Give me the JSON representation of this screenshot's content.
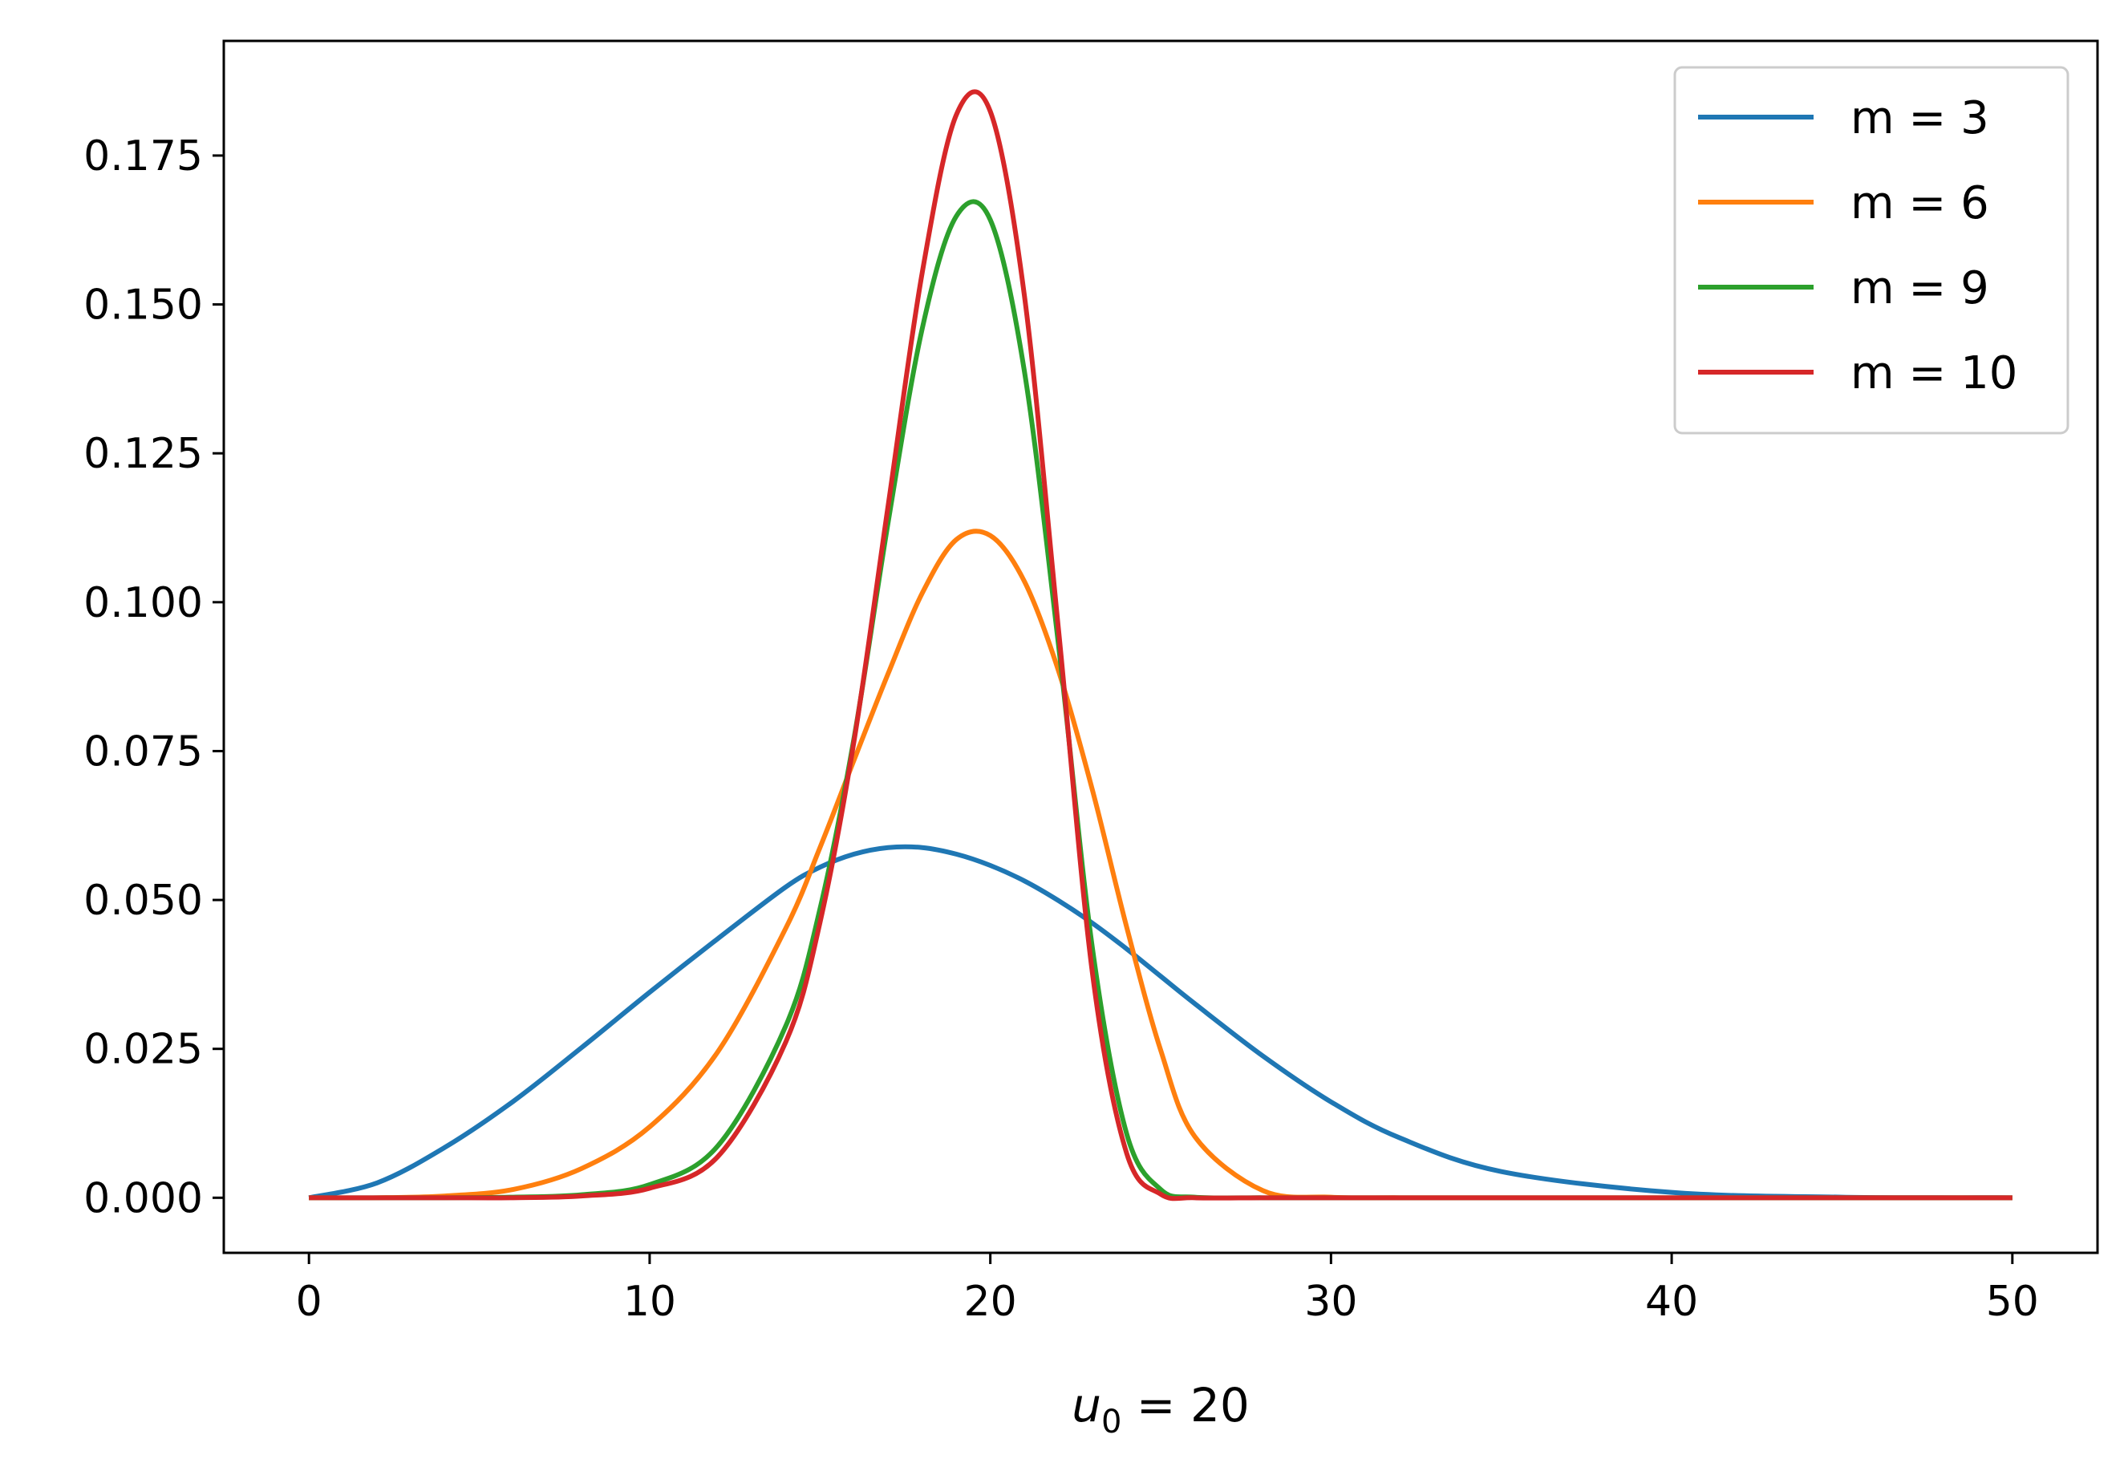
{
  "chart_data": {
    "type": "line",
    "title": "",
    "xlabel": "u0 = 20",
    "xlabel_parts": {
      "var": "u",
      "sub": "0",
      "rest": " = 20"
    },
    "ylabel": "",
    "xlim": [
      -2.5,
      52.5
    ],
    "ylim": [
      -0.00925,
      0.19425
    ],
    "xticks": [
      0,
      10,
      20,
      30,
      40,
      50
    ],
    "xtick_labels": [
      "0",
      "10",
      "20",
      "30",
      "40",
      "50"
    ],
    "yticks": [
      0,
      0.025,
      0.05,
      0.075,
      0.1,
      0.125,
      0.15,
      0.175
    ],
    "ytick_labels": [
      "0.000",
      "0.025",
      "0.050",
      "0.075",
      "0.100",
      "0.125",
      "0.150",
      "0.175"
    ],
    "grid": false,
    "legend_position": "top-right",
    "x": [
      0,
      2,
      4,
      6,
      8,
      10,
      12,
      14,
      15,
      16,
      17,
      18,
      19,
      20,
      21,
      22,
      23,
      24,
      25,
      26,
      28,
      30,
      32,
      35,
      40,
      45,
      50
    ],
    "series": [
      {
        "name": "m = 3",
        "color": "#1f77b4",
        "values": [
          0.0,
          0.0025,
          0.0085,
          0.0162,
          0.0252,
          0.0345,
          0.0435,
          0.0522,
          0.0555,
          0.0577,
          0.0588,
          0.0588,
          0.0577,
          0.0558,
          0.0532,
          0.0499,
          0.0461,
          0.0418,
          0.0372,
          0.0326,
          0.0238,
          0.0161,
          0.0101,
          0.0044,
          0.0009,
          0.0001,
          0.0
        ]
      },
      {
        "name": "m = 6",
        "color": "#ff7f0e",
        "values": [
          0.0,
          0.0,
          0.0003,
          0.0014,
          0.0049,
          0.0119,
          0.0245,
          0.0453,
          0.0588,
          0.0735,
          0.088,
          0.1015,
          0.1105,
          0.1112,
          0.1035,
          0.0885,
          0.0684,
          0.0455,
          0.0248,
          0.0103,
          0.0012,
          0.0001,
          0.0,
          0.0,
          0.0,
          0.0,
          0.0
        ]
      },
      {
        "name": "m = 9",
        "color": "#2ca02c",
        "values": [
          0.0,
          0.0,
          0.0,
          0.0001,
          0.0005,
          0.0022,
          0.0087,
          0.0289,
          0.0485,
          0.0772,
          0.1134,
          0.1459,
          0.1648,
          0.1642,
          0.1388,
          0.0929,
          0.0418,
          0.0108,
          0.0014,
          0.0001,
          0.0,
          0.0,
          0.0,
          0.0,
          0.0,
          0.0,
          0.0
        ]
      },
      {
        "name": "m = 10",
        "color": "#d62728",
        "values": [
          0.0,
          0.0,
          0.0,
          0.0,
          0.0003,
          0.0016,
          0.0069,
          0.0262,
          0.0462,
          0.0767,
          0.1162,
          0.1553,
          0.1818,
          0.1824,
          0.1515,
          0.0955,
          0.0376,
          0.0075,
          0.0006,
          0.0,
          0.0,
          0.0,
          0.0,
          0.0,
          0.0,
          0.0,
          0.0
        ]
      }
    ]
  }
}
